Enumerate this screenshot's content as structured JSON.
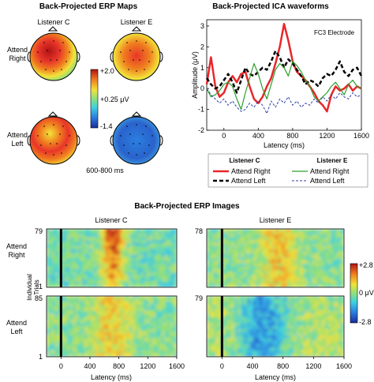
{
  "maps": {
    "title": "Back-Projected ERP Maps",
    "col_labels": [
      "Listener C",
      "Listener E"
    ],
    "row_labels": [
      [
        "Attend",
        "Right"
      ],
      [
        "Attend",
        "Left"
      ]
    ],
    "colorbar_labels": [
      "+2.0",
      "+0.25 μV",
      "-1.4"
    ],
    "time_window": "600-800 ms"
  },
  "waveforms": {
    "title": "Back-Projected ICA waveforms",
    "electrode": "FC3 Electrode",
    "legend": {
      "headers": [
        "Listener C",
        "Listener E"
      ],
      "entries": [
        [
          "Attend Right",
          "Attend Left"
        ],
        [
          "Attend Right",
          "Attend Left"
        ]
      ]
    }
  },
  "images": {
    "title": "Back-Projected ERP Images",
    "col_labels": [
      "Listener C",
      "Listener E"
    ],
    "row_labels": [
      [
        "Attend",
        "Right"
      ],
      [
        "Attend",
        "Left"
      ]
    ],
    "ylabel": [
      "Individual",
      "Trials"
    ],
    "trial_max_labels": [
      [
        "79",
        "78"
      ],
      [
        "85",
        "79"
      ]
    ],
    "trial_min_label": "1",
    "xlabel": "Latency (ms)",
    "xticks": [
      "0",
      "400",
      "800",
      "1200",
      "1600"
    ],
    "colorbar_labels": [
      "+2.8",
      "0 μV",
      "-2.8"
    ]
  },
  "colors": {
    "attend_right_C": "#e8262a",
    "attend_left_C": "#000000",
    "attend_right_E": "#2ca02c",
    "attend_left_E": "#2b3fa8"
  },
  "chart_data": [
    {
      "type": "line",
      "title": "Back-Projected ICA waveforms",
      "xlabel": "Latency (ms)",
      "ylabel": "Amplitude (μV)",
      "xlim": [
        -200,
        1600
      ],
      "ylim": [
        -2,
        3.3
      ],
      "xticks": [
        0,
        400,
        800,
        1200,
        1600
      ],
      "yticks": [
        -2,
        -1,
        0,
        1,
        2,
        3
      ],
      "series": [
        {
          "name": "Attend Right",
          "group": "Listener C",
          "style": "solid-thick",
          "color": "#e8262a",
          "x": [
            -200,
            -150,
            -100,
            -50,
            0,
            50,
            100,
            150,
            200,
            250,
            300,
            350,
            400,
            450,
            500,
            550,
            600,
            650,
            700,
            750,
            800,
            850,
            900,
            950,
            1000,
            1050,
            1100,
            1150,
            1200,
            1250,
            1300,
            1350,
            1400,
            1450,
            1500,
            1550,
            1600
          ],
          "y": [
            0.2,
            1.5,
            0.1,
            -0.4,
            -0.2,
            0.3,
            0.6,
            0.3,
            0.7,
            0.8,
            0.1,
            -0.5,
            -0.7,
            -0.4,
            0.1,
            0.5,
            1.2,
            2.0,
            3.1,
            2.3,
            1.3,
            0.8,
            0.6,
            0.4,
            0.1,
            -0.2,
            -0.6,
            -0.8,
            -1.1,
            -0.3,
            0.1,
            -0.1,
            0.0,
            0.2,
            -0.1,
            0.1,
            0.0
          ]
        },
        {
          "name": "Attend Left",
          "group": "Listener C",
          "style": "dashed-thick",
          "color": "#000000",
          "x": [
            -200,
            -150,
            -100,
            -50,
            0,
            50,
            100,
            150,
            200,
            250,
            300,
            350,
            400,
            450,
            500,
            550,
            600,
            650,
            700,
            750,
            800,
            850,
            900,
            950,
            1000,
            1050,
            1100,
            1150,
            1200,
            1250,
            1300,
            1350,
            1400,
            1450,
            1500,
            1550,
            1600
          ],
          "y": [
            0.5,
            0.2,
            0.0,
            0.1,
            0.4,
            0.7,
            0.3,
            -0.2,
            0.4,
            1.0,
            0.7,
            0.6,
            0.8,
            1.0,
            0.9,
            1.3,
            1.8,
            1.5,
            1.0,
            1.4,
            1.2,
            0.9,
            0.6,
            0.2,
            0.4,
            0.3,
            0.1,
            0.5,
            0.7,
            0.6,
            0.9,
            1.3,
            0.8,
            0.6,
            0.9,
            1.0,
            0.6
          ]
        },
        {
          "name": "Attend Right",
          "group": "Listener E",
          "style": "solid-thin",
          "color": "#2ca02c",
          "x": [
            -200,
            -150,
            -100,
            -50,
            0,
            50,
            100,
            150,
            200,
            250,
            300,
            350,
            400,
            450,
            500,
            550,
            600,
            650,
            700,
            750,
            800,
            850,
            900,
            950,
            1000,
            1050,
            1100,
            1150,
            1200,
            1250,
            1300,
            1350,
            1400,
            1450,
            1500,
            1550,
            1600
          ],
          "y": [
            0.0,
            -0.4,
            -0.3,
            -0.1,
            0.2,
            0.3,
            0.1,
            -0.5,
            -1.0,
            -0.2,
            0.5,
            1.2,
            0.7,
            0.0,
            -0.5,
            0.2,
            0.9,
            1.2,
            1.0,
            0.6,
            1.3,
            1.1,
            0.8,
            0.4,
            0.1,
            -0.4,
            -0.6,
            -0.4,
            -0.2,
            0.1,
            0.3,
            0.0,
            -0.3,
            0.2,
            0.4,
            0.1,
            0.0
          ]
        },
        {
          "name": "Attend Left",
          "group": "Listener E",
          "style": "dashed-thin",
          "color": "#2b3fa8",
          "x": [
            -200,
            -150,
            -100,
            -50,
            0,
            50,
            100,
            150,
            200,
            250,
            300,
            350,
            400,
            450,
            500,
            550,
            600,
            650,
            700,
            750,
            800,
            850,
            900,
            950,
            1000,
            1050,
            1100,
            1150,
            1200,
            1250,
            1300,
            1350,
            1400,
            1450,
            1500,
            1550,
            1600
          ],
          "y": [
            0.0,
            -0.3,
            -0.5,
            -0.7,
            -0.5,
            -0.8,
            -0.6,
            -0.9,
            -1.1,
            -1.0,
            -0.7,
            -0.9,
            -0.6,
            -0.8,
            -1.2,
            -0.6,
            -0.9,
            -0.5,
            -0.7,
            -0.4,
            -0.8,
            -0.6,
            -0.9,
            -0.7,
            -0.8,
            -0.5,
            -0.7,
            -0.4,
            -0.6,
            -0.3,
            -0.5,
            -0.2,
            -0.4,
            -0.5,
            -0.2,
            -0.4,
            -0.3
          ]
        }
      ]
    },
    {
      "type": "heatmap",
      "title": "Back-Projected ERP Images",
      "xlabel": "Latency (ms)",
      "xlim": [
        -200,
        1600
      ],
      "clim": [
        -2.8,
        2.8
      ],
      "panels": [
        {
          "listener": "Listener C",
          "condition": "Attend Right",
          "trials": 79,
          "pattern": "strong positive 550-900 ms"
        },
        {
          "listener": "Listener E",
          "condition": "Attend Right",
          "trials": 78,
          "pattern": "moderate positive 500-1000 ms"
        },
        {
          "listener": "Listener C",
          "condition": "Attend Left",
          "trials": 85,
          "pattern": "moderate positive 500-1000 ms"
        },
        {
          "listener": "Listener E",
          "condition": "Attend Left",
          "trials": 79,
          "pattern": "negative 200-900 ms"
        }
      ]
    }
  ]
}
